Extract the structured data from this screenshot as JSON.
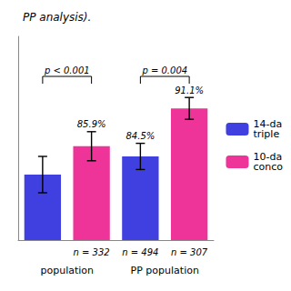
{
  "chart_data": {
    "type": "bar",
    "title": "PP analysis).",
    "categories": [
      "population",
      "PP population"
    ],
    "series": [
      {
        "name": "14-da\ntriple",
        "color": "#4040e0",
        "values": [
          82.0,
          84.5
        ],
        "errors": [
          2.5,
          1.8
        ],
        "value_labels": [
          null,
          "84.5%"
        ],
        "n_labels": [
          null,
          "n = 494"
        ]
      },
      {
        "name": "10-da\nconco",
        "color": "#ee3399",
        "values": [
          85.9,
          91.1
        ],
        "errors": [
          2.0,
          1.5
        ],
        "value_labels": [
          "85.9%",
          "91.1%"
        ],
        "n_labels": [
          "n = 332",
          "n = 307"
        ]
      }
    ],
    "annotations": [
      {
        "text": "p < 0.001",
        "category": "population",
        "y": 95.5
      },
      {
        "text": "p = 0.004",
        "category": "PP population",
        "y": 95.5
      }
    ],
    "ylim": [
      73,
      101
    ],
    "tick_labels": "x",
    "grid": false,
    "legend": "right",
    "data_labels": true
  }
}
